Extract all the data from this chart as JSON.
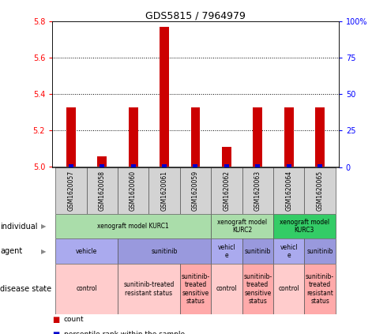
{
  "title": "GDS5815 / 7964979",
  "samples": [
    "GSM1620057",
    "GSM1620058",
    "GSM1620060",
    "GSM1620061",
    "GSM1620059",
    "GSM1620062",
    "GSM1620063",
    "GSM1620064",
    "GSM1620065"
  ],
  "count_values": [
    5.33,
    5.06,
    5.33,
    5.77,
    5.33,
    5.11,
    5.33,
    5.33,
    5.33
  ],
  "percentile_values": [
    2,
    2,
    2,
    2,
    2,
    2,
    2,
    2,
    2
  ],
  "ylim_left": [
    5.0,
    5.8
  ],
  "ylim_right": [
    0,
    100
  ],
  "yticks_left": [
    5.0,
    5.2,
    5.4,
    5.6,
    5.8
  ],
  "yticks_right": [
    0,
    25,
    50,
    75,
    100
  ],
  "bar_color_count": "#cc0000",
  "bar_color_percentile": "#0000cc",
  "individual_row": {
    "groups": [
      {
        "label": "xenograft model KURC1",
        "start": 0,
        "end": 5,
        "color": "#aaddaa"
      },
      {
        "label": "xenograft model\nKURC2",
        "start": 5,
        "end": 7,
        "color": "#aaddaa"
      },
      {
        "label": "xenograft model\nKURC3",
        "start": 7,
        "end": 9,
        "color": "#33cc66"
      }
    ]
  },
  "agent_row": {
    "groups": [
      {
        "label": "vehicle",
        "start": 0,
        "end": 2,
        "color": "#aaaaee"
      },
      {
        "label": "sunitinib",
        "start": 2,
        "end": 5,
        "color": "#9999dd"
      },
      {
        "label": "vehicl\ne",
        "start": 5,
        "end": 6,
        "color": "#aaaaee"
      },
      {
        "label": "sunitinib",
        "start": 6,
        "end": 7,
        "color": "#9999dd"
      },
      {
        "label": "vehicl\ne",
        "start": 7,
        "end": 8,
        "color": "#aaaaee"
      },
      {
        "label": "sunitinib",
        "start": 8,
        "end": 9,
        "color": "#9999dd"
      }
    ]
  },
  "disease_row": {
    "groups": [
      {
        "label": "control",
        "start": 0,
        "end": 2,
        "color": "#ffcccc"
      },
      {
        "label": "sunitinib-treated\nresistant status",
        "start": 2,
        "end": 4,
        "color": "#ffcccc"
      },
      {
        "label": "sunitinib-\ntreated\nsensitive\nstatus",
        "start": 4,
        "end": 5,
        "color": "#ffaaaa"
      },
      {
        "label": "control",
        "start": 5,
        "end": 6,
        "color": "#ffcccc"
      },
      {
        "label": "sunitinib-\ntreated\nsensitive\nstatus",
        "start": 6,
        "end": 7,
        "color": "#ffaaaa"
      },
      {
        "label": "control",
        "start": 7,
        "end": 8,
        "color": "#ffcccc"
      },
      {
        "label": "sunitinib-\ntreated\nresistant\nstatus",
        "start": 8,
        "end": 9,
        "color": "#ffaaaa"
      }
    ]
  },
  "row_labels": [
    "individual",
    "agent",
    "disease state"
  ],
  "sample_bg_color": "#d3d3d3",
  "legend_items": [
    {
      "label": "count",
      "color": "#cc0000"
    },
    {
      "label": "percentile rank within the sample",
      "color": "#0000cc"
    }
  ],
  "bar_width": 0.3,
  "perc_bar_width": 0.15
}
